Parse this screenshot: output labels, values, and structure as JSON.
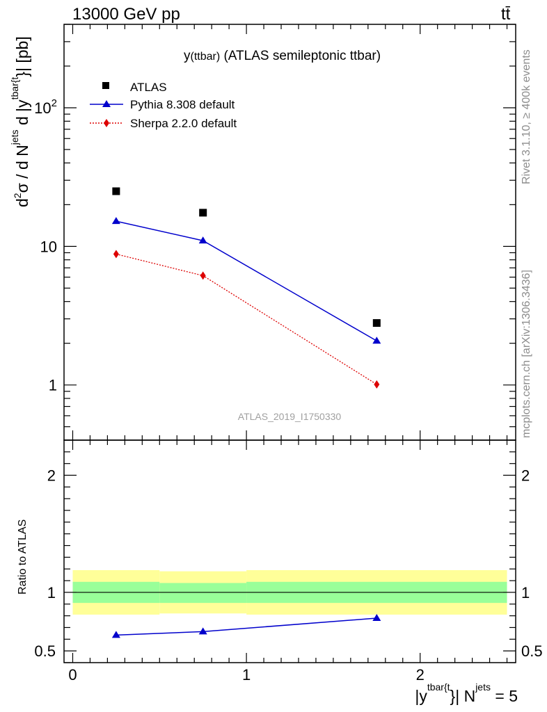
{
  "header": {
    "energy_label": "13000 GeV pp",
    "process_label": "tt̄"
  },
  "side": {
    "rivet": "Rivet 3.1.10, ≥ 400k events",
    "source": "mcplots.cern.ch [arXiv:1306.3436]"
  },
  "main": {
    "title_prefix": "y",
    "title_sub": "(ttbar)",
    "title_rest": " (ATLAS semileptonic ttbar)",
    "analysis_id": "ATLAS_2019_I1750330"
  },
  "colors": {
    "data": "#000000",
    "pythia": "#0000cc",
    "sherpa": "#dd0000",
    "band_inner": "#99ff99",
    "band_outer": "#ffff99"
  },
  "chart_data": [
    {
      "type": "line",
      "title": "y(ttbar) (ATLAS semileptonic ttbar)",
      "xlabel": "|ytbar{t}| Njets = 5",
      "ylabel": "d2σ / d Njets d |ytbar{t}| [pb]",
      "yscale": "log",
      "xlim": [
        -0.05,
        2.55
      ],
      "ylim": [
        0.4,
        400
      ],
      "xticks": [
        0,
        1,
        2
      ],
      "yticks": [
        {
          "value": 1,
          "label": "1"
        },
        {
          "value": 10,
          "label": "10"
        },
        {
          "value": 100,
          "label": "10²"
        }
      ],
      "x": [
        0.25,
        0.75,
        1.75
      ],
      "series": [
        {
          "name": "ATLAS",
          "values": [
            25.0,
            17.5,
            2.8
          ]
        },
        {
          "name": "Pythia 8.308 default",
          "values": [
            15.2,
            11.0,
            2.08
          ]
        },
        {
          "name": "Sherpa 2.2.0 default",
          "values": [
            8.8,
            6.15,
            1.01
          ]
        }
      ],
      "legend": "top-left"
    },
    {
      "type": "line",
      "ylabel": "Ratio to ATLAS",
      "xlim": [
        -0.05,
        2.55
      ],
      "ylim": [
        0.4,
        2.3
      ],
      "xticks": [
        0,
        1,
        2
      ],
      "yticks": [
        {
          "value": 0.5,
          "label": "0.5"
        },
        {
          "value": 1,
          "label": "1"
        },
        {
          "value": 2,
          "label": "2"
        }
      ],
      "x": [
        0.25,
        0.75,
        1.75
      ],
      "series": [
        {
          "name": "Pythia 8.308 default",
          "values": [
            0.635,
            0.665,
            0.78
          ]
        }
      ],
      "bands": [
        {
          "x_low": 0.0,
          "x_high": 0.5,
          "inner": [
            0.91,
            1.09
          ],
          "outer": [
            0.81,
            1.19
          ]
        },
        {
          "x_low": 0.5,
          "x_high": 1.0,
          "inner": [
            0.91,
            1.08
          ],
          "outer": [
            0.82,
            1.18
          ]
        },
        {
          "x_low": 1.0,
          "x_high": 2.5,
          "inner": [
            0.91,
            1.09
          ],
          "outer": [
            0.81,
            1.19
          ]
        }
      ],
      "reference_line": 1
    }
  ]
}
